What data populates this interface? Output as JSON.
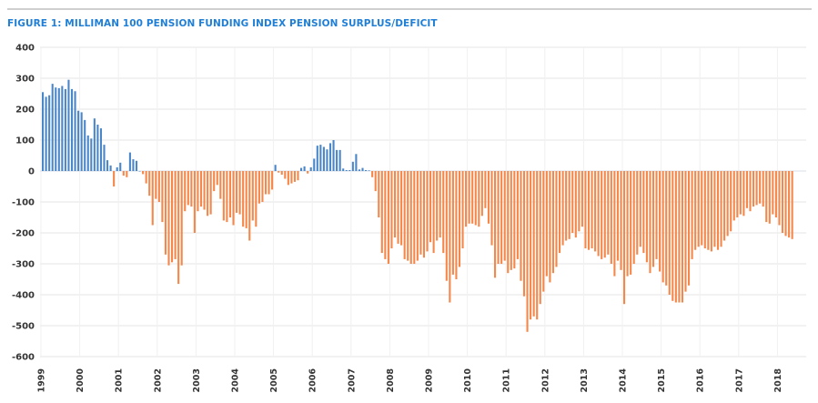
{
  "figure": {
    "title": "FIGURE 1: MILLIMAN 100 PENSION FUNDING INDEX PENSION SURPLUS/DEFICIT"
  },
  "colors": {
    "surplus": "#4a86c8",
    "deficit": "#f5874a",
    "title": "#1f7fd6",
    "grid": "#e6e6e6"
  },
  "chart_data": {
    "type": "bar",
    "title": "FIGURE 1: MILLIMAN 100 PENSION FUNDING INDEX PENSION SURPLUS/DEFICIT",
    "xlabel": "",
    "ylabel": "",
    "ylim": [
      -600,
      400
    ],
    "yticks": [
      "400",
      "300",
      "200",
      "100",
      "0",
      "-100",
      "-200",
      "-300",
      "-400",
      "-500",
      "-600"
    ],
    "ytick_values": [
      400,
      300,
      200,
      100,
      0,
      -100,
      -200,
      -300,
      -400,
      -500,
      -600
    ],
    "xticks": [
      "1999",
      "2000",
      "2001",
      "2002",
      "2003",
      "2004",
      "2005",
      "2006",
      "2007",
      "2008",
      "2009",
      "2010",
      "2011",
      "2012",
      "2013",
      "2014",
      "2015",
      "2016",
      "2017",
      "2018"
    ],
    "start": "1999-01",
    "frequency": "monthly",
    "grid": true,
    "legend": "none",
    "series": [
      {
        "name": "Pension surplus/deficit",
        "values": [
          255,
          240,
          245,
          282,
          270,
          268,
          275,
          265,
          295,
          265,
          258,
          195,
          190,
          165,
          115,
          105,
          170,
          150,
          138,
          85,
          35,
          18,
          -50,
          12,
          27,
          -15,
          -20,
          60,
          38,
          33,
          0,
          -10,
          -40,
          -80,
          -175,
          -90,
          -100,
          -165,
          -270,
          -305,
          -295,
          -285,
          -365,
          -305,
          -130,
          -110,
          -115,
          -200,
          -130,
          -115,
          -125,
          -145,
          -140,
          -65,
          -45,
          -90,
          -160,
          -165,
          -150,
          -175,
          -135,
          -140,
          -180,
          -185,
          -225,
          -160,
          -180,
          -105,
          -100,
          -75,
          -75,
          -60,
          20,
          -5,
          -12,
          -25,
          -45,
          -40,
          -35,
          -30,
          10,
          15,
          -8,
          12,
          40,
          82,
          85,
          78,
          70,
          90,
          100,
          68,
          68,
          8,
          3,
          3,
          30,
          55,
          5,
          10,
          3,
          2,
          -20,
          -65,
          -150,
          -265,
          -285,
          -300,
          -250,
          -215,
          -235,
          -240,
          -285,
          -290,
          -300,
          -300,
          -290,
          -270,
          -280,
          -260,
          -230,
          -265,
          -225,
          -215,
          -265,
          -355,
          -425,
          -335,
          -350,
          -310,
          -250,
          -180,
          -170,
          -170,
          -175,
          -180,
          -145,
          -120,
          -170,
          -240,
          -345,
          -300,
          -300,
          -290,
          -330,
          -320,
          -315,
          -285,
          -355,
          -405,
          -520,
          -480,
          -470,
          -480,
          -430,
          -390,
          -340,
          -360,
          -330,
          -310,
          -265,
          -240,
          -225,
          -220,
          -200,
          -215,
          -195,
          -180,
          -250,
          -255,
          -250,
          -260,
          -275,
          -285,
          -280,
          -270,
          -300,
          -340,
          -290,
          -320,
          -430,
          -340,
          -335,
          -300,
          -270,
          -245,
          -265,
          -295,
          -330,
          -310,
          -285,
          -325,
          -360,
          -370,
          -400,
          -420,
          -425,
          -425,
          -425,
          -390,
          -370,
          -285,
          -255,
          -245,
          -240,
          -250,
          -255,
          -260,
          -245,
          -255,
          -245,
          -225,
          -210,
          -195,
          -160,
          -150,
          -140,
          -145,
          -120,
          -130,
          -115,
          -110,
          -105,
          -115,
          -165,
          -170,
          -140,
          -150,
          -175,
          -200,
          -210,
          -215,
          -220
        ]
      }
    ]
  }
}
